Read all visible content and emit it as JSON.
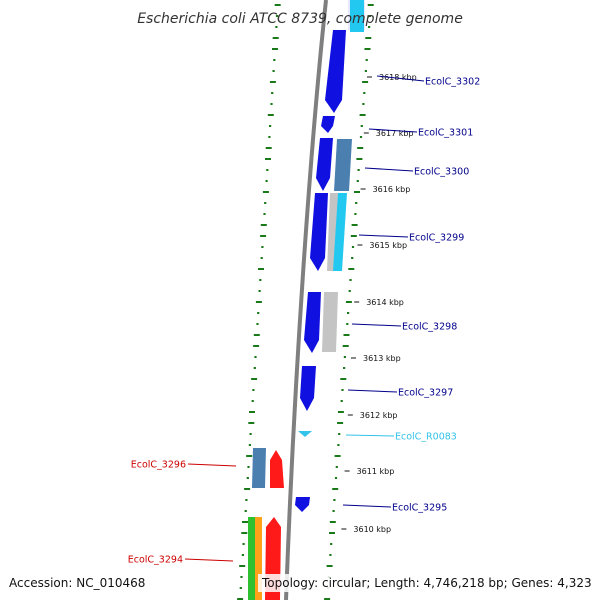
{
  "title": "Escherichia coli ATCC 8739, complete genome",
  "footer": {
    "accession": "Accession: NC_010468",
    "topology": "Topology: circular; Length: 4,746,218 bp; Genes: 4,323"
  },
  "scale_ticks": [
    "3618 kbp",
    "3617 kbp",
    "3616 kbp",
    "3615 kbp",
    "3614 kbp",
    "3613 kbp",
    "3612 kbp",
    "3611 kbp",
    "3610 kbp"
  ],
  "genes_right": [
    {
      "label": "EcolC_3302",
      "color": "#00008b"
    },
    {
      "label": "EcolC_3301",
      "color": "#00008b"
    },
    {
      "label": "EcolC_3300",
      "color": "#00008b"
    },
    {
      "label": "EcolC_3299",
      "color": "#00008b"
    },
    {
      "label": "EcolC_3298",
      "color": "#00008b"
    },
    {
      "label": "EcolC_3297",
      "color": "#00008b"
    },
    {
      "label": "EcolC_R0083",
      "color": "#33c3e8"
    },
    {
      "label": "EcolC_3295",
      "color": "#00008b"
    }
  ],
  "genes_left": [
    {
      "label": "EcolC_3296",
      "color": "#cc0000"
    },
    {
      "label": "EcolC_3294",
      "color": "#cc0000"
    }
  ],
  "colors": {
    "forward_cds": "#1010e0",
    "reverse_cds": "#ff1a1a",
    "trna": "#33c3e8",
    "cog_steel": "#4a7fb0",
    "cog_grey": "#c4c4c4",
    "cog_cyan": "#23c8f0",
    "cog_green": "#2ec02e",
    "cog_orange": "#ffa21a",
    "backbone": "#7f7f7f",
    "gc_dots": "#1a7a1a"
  }
}
